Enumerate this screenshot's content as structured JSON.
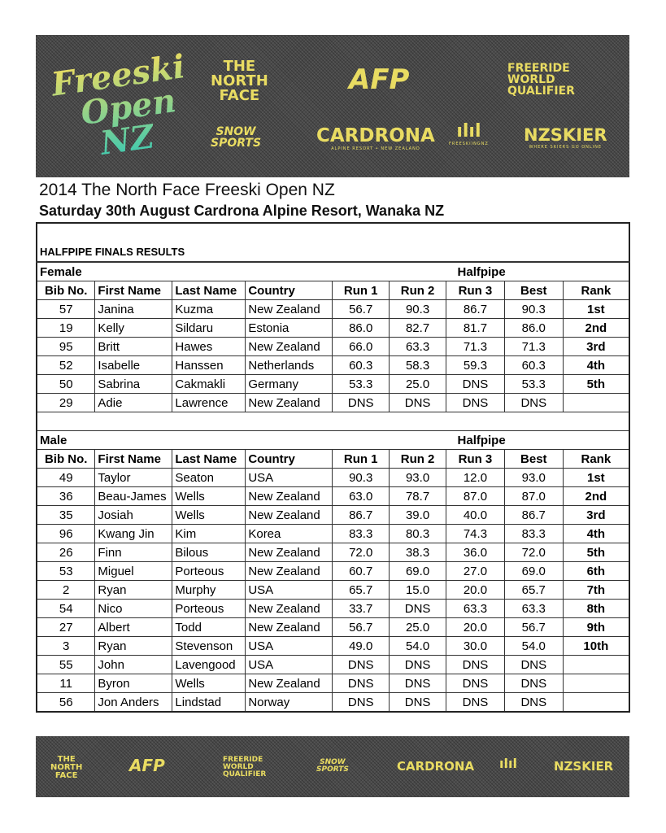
{
  "header_banner": {
    "logos": [
      "THE NORTH FACE Freeski Open NZ",
      "THE NORTH FACE",
      "AFP",
      "FREERIDE WORLD QUALIFIER",
      "SNOW SPORTS NZ",
      "CARDRONA ALPINE RESORT • NEW ZEALAND",
      "FREESKIINGNZ",
      "NZSKIER WHERE SKIERS GO ONLINE"
    ],
    "colors": {
      "logo": "#e9dc62",
      "background": "#4a4a4a"
    }
  },
  "document": {
    "title": "2014 The North Face Freeski Open NZ",
    "subtitle": "Saturday 30th August Cardrona Alpine Resort, Wanaka NZ"
  },
  "results": {
    "heading": "HALFPIPE FINALS  RESULTS",
    "columns": [
      "Bib No.",
      "First Name",
      "Last Name",
      "Country",
      "Run 1",
      "Run 2",
      "Run 3",
      "Best",
      "Rank"
    ],
    "discipline": "Halfpipe",
    "sections": [
      {
        "label": "Female",
        "rows": [
          [
            "57",
            "Janina",
            "Kuzma",
            "New Zealand",
            "56.7",
            "90.3",
            "86.7",
            "90.3",
            "1st"
          ],
          [
            "19",
            "Kelly",
            "Sildaru",
            "Estonia",
            "86.0",
            "82.7",
            "81.7",
            "86.0",
            "2nd"
          ],
          [
            "95",
            "Britt",
            "Hawes",
            "New Zealand",
            "66.0",
            "63.3",
            "71.3",
            "71.3",
            "3rd"
          ],
          [
            "52",
            "Isabelle",
            "Hanssen",
            "Netherlands",
            "60.3",
            "58.3",
            "59.3",
            "60.3",
            "4th"
          ],
          [
            "50",
            "Sabrina",
            "Cakmakli",
            "Germany",
            "53.3",
            "25.0",
            "DNS",
            "53.3",
            "5th"
          ],
          [
            "29",
            "Adie",
            "Lawrence",
            "New Zealand",
            "DNS",
            "DNS",
            "DNS",
            "DNS",
            ""
          ]
        ]
      },
      {
        "label": "Male",
        "rows": [
          [
            "49",
            "Taylor",
            "Seaton",
            "USA",
            "90.3",
            "93.0",
            "12.0",
            "93.0",
            "1st"
          ],
          [
            "36",
            "Beau-James",
            "Wells",
            "New Zealand",
            "63.0",
            "78.7",
            "87.0",
            "87.0",
            "2nd"
          ],
          [
            "35",
            "Josiah",
            "Wells",
            "New Zealand",
            "86.7",
            "39.0",
            "40.0",
            "86.7",
            "3rd"
          ],
          [
            "96",
            "Kwang Jin",
            "Kim",
            "Korea",
            "83.3",
            "80.3",
            "74.3",
            "83.3",
            "4th"
          ],
          [
            "26",
            "Finn",
            "Bilous",
            "New Zealand",
            "72.0",
            "38.3",
            "36.0",
            "72.0",
            "5th"
          ],
          [
            "53",
            "Miguel",
            "Porteous",
            "New Zealand",
            "60.7",
            "69.0",
            "27.0",
            "69.0",
            "6th"
          ],
          [
            "2",
            "Ryan",
            "Murphy",
            "USA",
            "65.7",
            "15.0",
            "20.0",
            "65.7",
            "7th"
          ],
          [
            "54",
            "Nico",
            "Porteous",
            "New Zealand",
            "33.7",
            "DNS",
            "63.3",
            "63.3",
            "8th"
          ],
          [
            "27",
            "Albert",
            "Todd",
            "New Zealand",
            "56.7",
            "25.0",
            "20.0",
            "56.7",
            "9th"
          ],
          [
            "3",
            "Ryan",
            "Stevenson",
            "USA",
            "49.0",
            "54.0",
            "30.0",
            "54.0",
            "10th"
          ],
          [
            "55",
            "John",
            "Lavengood",
            "USA",
            "DNS",
            "DNS",
            "DNS",
            "DNS",
            ""
          ],
          [
            "11",
            "Byron",
            "Wells",
            "New Zealand",
            "DNS",
            "DNS",
            "DNS",
            "DNS",
            ""
          ],
          [
            "56",
            "Jon Anders",
            "Lindstad",
            "Norway",
            "DNS",
            "DNS",
            "DNS",
            "DNS",
            ""
          ]
        ]
      }
    ]
  },
  "footer_banner": {
    "logos": [
      "THE NORTH FACE",
      "AFP",
      "FREERIDE WORLD QUALIFIER",
      "SNOW SPORTS NZ",
      "CARDRONA",
      "FREESKIINGNZ",
      "NZSKIER"
    ]
  }
}
